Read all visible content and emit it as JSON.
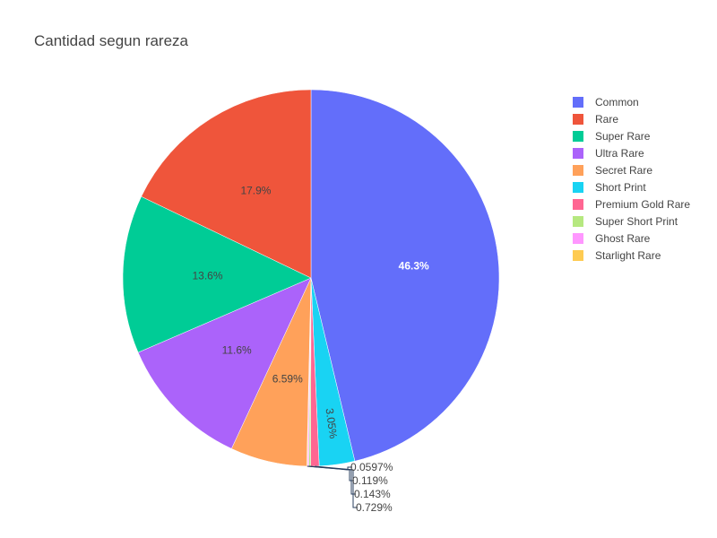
{
  "chart_data": {
    "type": "pie",
    "title": "Cantidad segun rareza",
    "legend_position": "right",
    "direction": "clockwise",
    "start_angle": "top",
    "slices": [
      {
        "label": "Common",
        "value": 46.3,
        "text": "46.3%",
        "color": "#636efa"
      },
      {
        "label": "Short Print",
        "value": 3.05,
        "text": "3.05%",
        "color": "#19d3f3"
      },
      {
        "label": "Premium Gold Rare",
        "value": 0.729,
        "text": "0.729%",
        "color": "#ff6692"
      },
      {
        "label": "Super Short Print",
        "value": 0.143,
        "text": "0.143%",
        "color": "#b6e880"
      },
      {
        "label": "Ghost Rare",
        "value": 0.119,
        "text": "0.119%",
        "color": "#ff97ff"
      },
      {
        "label": "Starlight Rare",
        "value": 0.0597,
        "text": "0.0597%",
        "color": "#fecb52"
      },
      {
        "label": "Secret Rare",
        "value": 6.59,
        "text": "6.59%",
        "color": "#ffa15a"
      },
      {
        "label": "Ultra Rare",
        "value": 11.6,
        "text": "11.6%",
        "color": "#ab63fa"
      },
      {
        "label": "Super Rare",
        "value": 13.6,
        "text": "13.6%",
        "color": "#00cc96"
      },
      {
        "label": "Rare",
        "value": 17.9,
        "text": "17.9%",
        "color": "#ef553b"
      }
    ],
    "legend": [
      "Common",
      "Rare",
      "Super Rare",
      "Ultra Rare",
      "Secret Rare",
      "Short Print",
      "Premium Gold Rare",
      "Super Short Print",
      "Ghost Rare",
      "Starlight Rare"
    ]
  }
}
